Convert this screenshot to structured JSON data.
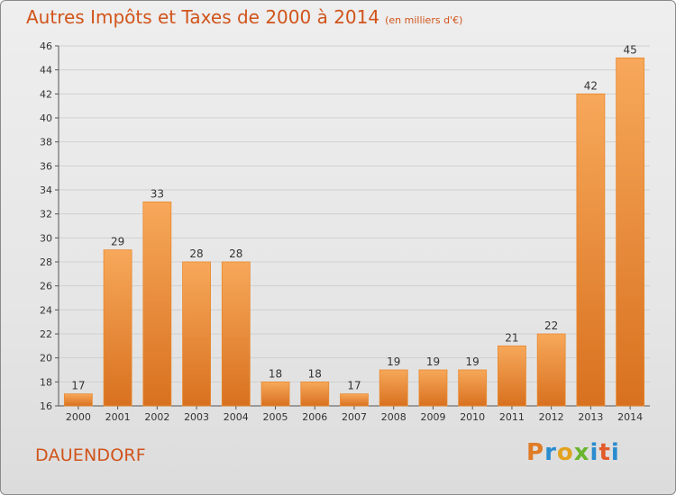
{
  "header": {
    "title": "Autres Impôts et Taxes de 2000 à 2014",
    "unit_note": "(en milliers d'€)"
  },
  "footer": {
    "commune": "DAUENDORF",
    "logo_text": "Proxiti",
    "logo_colors": [
      "#e07b26",
      "#2a8ccf",
      "#e2a21f",
      "#6cb52f",
      "#2a8ccf",
      "#e25b2a",
      "#2a8ccf"
    ]
  },
  "colors": {
    "bar_top": "#f7a85a",
    "bar_bottom": "#d8711f",
    "bar_edge": "#e9892f",
    "title": "#d1541b",
    "axis": "#555555",
    "grid": "#d0d0d0"
  },
  "chart_data": {
    "type": "bar",
    "title": "Autres Impôts et Taxes de 2000 à 2014",
    "subtitle": "(en milliers d'€)",
    "categories": [
      "2000",
      "2001",
      "2002",
      "2003",
      "2004",
      "2005",
      "2006",
      "2007",
      "2008",
      "2009",
      "2010",
      "2011",
      "2012",
      "2013",
      "2014"
    ],
    "values": [
      17,
      29,
      33,
      28,
      28,
      18,
      18,
      17,
      19,
      19,
      19,
      21,
      22,
      42,
      45
    ],
    "ylim": [
      16,
      46
    ],
    "yticks": [
      16,
      18,
      20,
      22,
      24,
      26,
      28,
      30,
      32,
      34,
      36,
      38,
      40,
      42,
      44,
      46
    ],
    "grid": true,
    "legend": "none"
  }
}
